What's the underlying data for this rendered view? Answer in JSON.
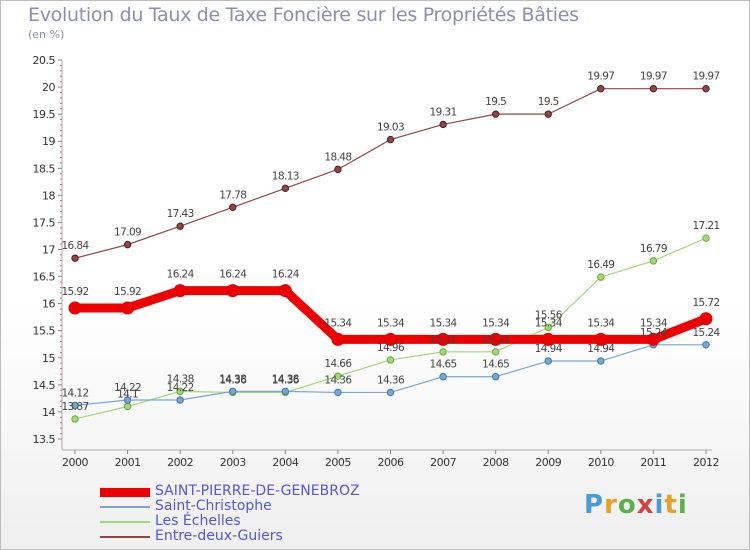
{
  "header": {
    "title": "Evolution du Taux de Taxe Foncière sur les Propriétés Bâties",
    "unit": "(en %)"
  },
  "logo": {
    "text": "Proxiti",
    "colors": [
      "#4a9ad8",
      "#e8a020",
      "#5ab04a",
      "#d84040",
      "#4a9ad8",
      "#e8a020",
      "#5ab04a"
    ]
  },
  "chart_data": {
    "type": "line",
    "x": [
      "2000",
      "2001",
      "2002",
      "2003",
      "2004",
      "2005",
      "2006",
      "2007",
      "2008",
      "2009",
      "2010",
      "2011",
      "2012"
    ],
    "ylim": [
      13.5,
      20.5
    ],
    "yticks": [
      "13.5",
      "14",
      "14.5",
      "15",
      "15.5",
      "16",
      "16.5",
      "17",
      "17.5",
      "18",
      "18.5",
      "19",
      "19.5",
      "20",
      "20.5"
    ],
    "grid": false,
    "legend_position": "bottom-left",
    "series": [
      {
        "name": "SAINT-PIERRE-DE-GENEBROZ",
        "color": "#ee0000",
        "width": 9,
        "values": [
          15.92,
          15.92,
          16.24,
          16.24,
          16.24,
          15.34,
          15.34,
          15.34,
          15.34,
          15.34,
          15.34,
          15.34,
          15.72
        ],
        "labels": [
          "15.92",
          "15.92",
          "16.24",
          "16.24",
          "16.24",
          "15.34",
          "15.34",
          "15.34",
          "15.34",
          "15.34",
          "15.34",
          "15.34",
          "15.72"
        ]
      },
      {
        "name": "Saint-Christophe",
        "color": "#7aa6d0",
        "width": 1.2,
        "values": [
          14.12,
          14.22,
          14.22,
          14.38,
          14.38,
          14.36,
          14.36,
          14.65,
          14.65,
          14.94,
          14.94,
          15.24,
          15.24
        ],
        "labels": [
          "14.12",
          "14.22",
          "14.22",
          "14.38",
          "14.38",
          "14.36",
          "14.36",
          "14.65",
          "14.65",
          "14.94",
          "14.94",
          "15.24",
          "15.24"
        ]
      },
      {
        "name": "Les Échelles",
        "color": "#a4d67a",
        "width": 1.2,
        "values": [
          13.87,
          14.1,
          14.38,
          14.36,
          14.36,
          14.66,
          14.96,
          15.11,
          15.11,
          15.56,
          16.49,
          16.79,
          17.21
        ],
        "labels": [
          "13.87",
          "14.1",
          "14.38",
          "14.36",
          "14.36",
          "14.66",
          "14.96",
          "15.11",
          "15.11",
          "15.56",
          "16.49",
          "16.79",
          "17.21"
        ]
      },
      {
        "name": "Entre-deux-Guiers",
        "color": "#8a4848",
        "width": 1.2,
        "values": [
          16.84,
          17.09,
          17.43,
          17.78,
          18.13,
          18.48,
          19.03,
          19.31,
          19.5,
          19.5,
          19.97,
          19.97,
          19.97
        ],
        "labels": [
          "16.84",
          "17.09",
          "17.43",
          "17.78",
          "18.13",
          "18.48",
          "19.03",
          "19.31",
          "19.5",
          "19.5",
          "19.97",
          "19.97",
          "19.97"
        ]
      }
    ]
  }
}
